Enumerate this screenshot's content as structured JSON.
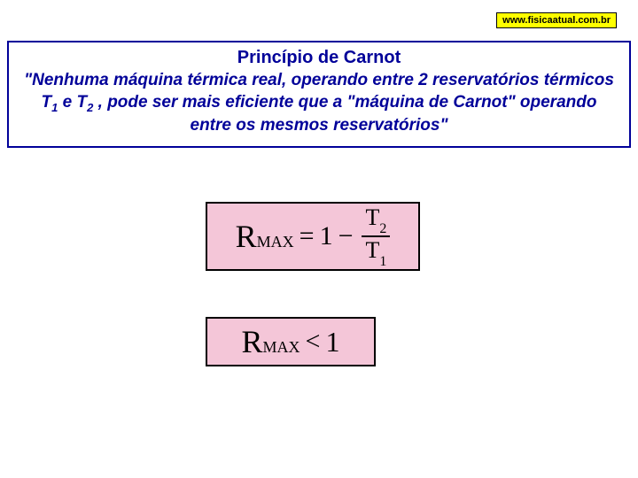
{
  "url_badge": "www.fisicaatual.com.br",
  "principle": {
    "title": "Princípio de Carnot",
    "text_part1": "\"Nenhuma máquina térmica real, operando entre 2 reservatórios térmicos T",
    "sub1": "1",
    "text_mid1": " e T",
    "sub2": "2",
    "text_part2": " , pode ser mais eficiente que a \"máquina de Carnot\" operando entre os mesmos reservatórios\""
  },
  "formula1": {
    "lhs_main": "R",
    "lhs_sub": "MAX",
    "eq": "=",
    "rhs_const": "1",
    "minus": "−",
    "frac_num_main": "T",
    "frac_num_sub": "2",
    "frac_den_main": "T",
    "frac_den_sub": "1"
  },
  "formula2": {
    "lhs_main": "R",
    "lhs_sub": "MAX",
    "lt": "<",
    "rhs": "1"
  },
  "colors": {
    "badge_bg": "#ffff00",
    "box_border": "#000099",
    "text_color": "#000099",
    "formula_bg": "#f4c6d8",
    "formula_border": "#000000"
  }
}
